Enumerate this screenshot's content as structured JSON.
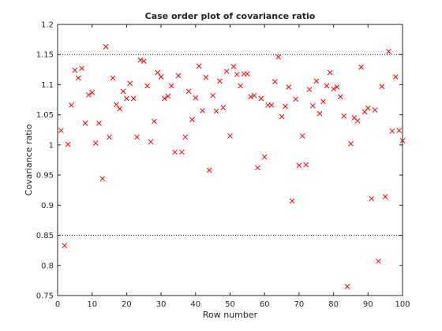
{
  "colors": {
    "axis": "#262626",
    "marker": "#ff0000",
    "reference_line": "#000000",
    "background": "#ffffff"
  },
  "chart_data": {
    "type": "scatter",
    "title": "Case order plot of covariance ratio",
    "xlabel": "Row number",
    "ylabel": "Covariance ratio",
    "xlim": [
      0,
      100
    ],
    "ylim": [
      0.75,
      1.2
    ],
    "x_ticks": [
      "0",
      "10",
      "20",
      "30",
      "40",
      "50",
      "60",
      "70",
      "80",
      "90",
      "100"
    ],
    "y_ticks": [
      "0.75",
      "0.8",
      "0.85",
      "0.9",
      "0.95",
      "1",
      "1.05",
      "1.1",
      "1.15",
      "1.2"
    ],
    "marker": "x",
    "grid": false,
    "reference_lines": [
      0.85,
      1.15
    ],
    "series": [
      {
        "x": [
          1,
          2,
          3,
          4,
          5,
          6,
          7,
          8,
          9,
          10,
          11,
          12,
          13,
          14,
          15,
          16,
          17,
          18,
          19,
          20,
          21,
          22,
          23,
          24,
          25,
          26,
          27,
          28,
          29,
          30,
          31,
          32,
          33,
          34,
          35,
          36,
          37,
          38,
          39,
          40,
          41,
          42,
          43,
          44,
          45,
          46,
          47,
          48,
          49,
          50,
          51,
          52,
          53,
          54,
          55,
          56,
          57,
          58,
          59,
          60,
          61,
          62,
          63,
          64,
          65,
          66,
          67,
          68,
          69,
          70,
          71,
          72,
          73,
          74,
          75,
          76,
          77,
          78,
          79,
          80,
          81,
          82,
          83,
          84,
          85,
          86,
          87,
          88,
          89,
          90,
          91,
          92,
          93,
          94,
          95,
          96,
          97,
          98,
          99,
          100
        ],
        "y": [
          1.024,
          0.833,
          1.001,
          1.066,
          1.124,
          1.111,
          1.127,
          1.036,
          1.083,
          1.087,
          1.003,
          1.036,
          0.944,
          1.163,
          1.013,
          1.111,
          1.067,
          1.06,
          1.089,
          1.077,
          1.102,
          1.077,
          1.013,
          1.141,
          1.139,
          1.098,
          1.005,
          1.039,
          1.12,
          1.113,
          1.077,
          1.081,
          1.098,
          0.988,
          1.115,
          0.988,
          1.013,
          1.089,
          1.042,
          1.078,
          1.131,
          1.057,
          1.112,
          0.958,
          1.082,
          1.056,
          1.106,
          1.062,
          1.122,
          1.015,
          1.13,
          1.117,
          1.098,
          1.118,
          1.118,
          1.08,
          1.082,
          0.962,
          1.077,
          0.98,
          1.066,
          1.066,
          1.105,
          1.146,
          1.047,
          1.064,
          1.096,
          0.907,
          1.076,
          0.966,
          1.015,
          0.967,
          1.092,
          1.065,
          1.106,
          1.052,
          1.072,
          1.098,
          1.12,
          1.093,
          1.096,
          1.08,
          1.048,
          0.765,
          1.002,
          1.045,
          1.04,
          1.129,
          1.055,
          1.061,
          0.911,
          1.058,
          0.807,
          1.097,
          0.914,
          1.155,
          1.023,
          1.113,
          1.024,
          1.007
        ]
      }
    ]
  }
}
